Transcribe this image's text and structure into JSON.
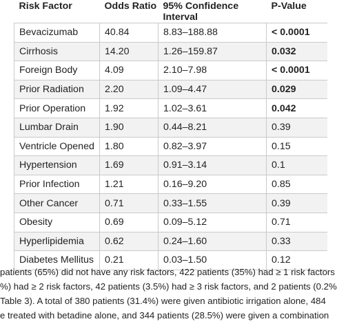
{
  "table": {
    "headers": [
      "Risk Factor",
      "Odds Ratio",
      "95% Confidence Interval",
      "P-Value"
    ],
    "rows": [
      {
        "factor": "Bevacizumab",
        "or": "40.84",
        "ci": "8.83–188.88",
        "p": "< 0.0001",
        "bold": true
      },
      {
        "factor": "Cirrhosis",
        "or": "14.20",
        "ci": "1.26–159.87",
        "p": "0.032",
        "bold": true
      },
      {
        "factor": "Foreign Body",
        "or": "4.09",
        "ci": "2.10–7.98",
        "p": "< 0.0001",
        "bold": true
      },
      {
        "factor": "Prior Radiation",
        "or": "2.20",
        "ci": "1.09–4.47",
        "p": "0.029",
        "bold": true
      },
      {
        "factor": "Prior Operation",
        "or": "1.92",
        "ci": "1.02–3.61",
        "p": "0.042",
        "bold": true
      },
      {
        "factor": "Lumbar Drain",
        "or": "1.90",
        "ci": "0.44–8.21",
        "p": "0.39",
        "bold": false
      },
      {
        "factor": "Ventricle Opened",
        "or": "1.80",
        "ci": "0.82–3.97",
        "p": "0.15",
        "bold": false
      },
      {
        "factor": "Hypertension",
        "or": "1.69",
        "ci": "0.91–3.14",
        "p": "0.1",
        "bold": false
      },
      {
        "factor": "Prior Infection",
        "or": "1.21",
        "ci": "0.16–9.20",
        "p": "0.85",
        "bold": false
      },
      {
        "factor": "Other Cancer",
        "or": "0.71",
        "ci": "0.33–1.55",
        "p": "0.39",
        "bold": false
      },
      {
        "factor": "Obesity",
        "or": "0.69",
        "ci": "0.09–5.12",
        "p": "0.71",
        "bold": false
      },
      {
        "factor": "Hyperlipidemia",
        "or": "0.62",
        "ci": "0.24–1.60",
        "p": "0.33",
        "bold": false
      },
      {
        "factor": "Diabetes Mellitus",
        "or": "0.21",
        "ci": "0.03–1.50",
        "p": "0.12",
        "bold": false
      }
    ]
  },
  "caption": {
    "lines": [
      "patients (65%) did not have any risk factors, 422 patients (35%) had ≥ 1 risk factors",
      "%) had ≥ 2 risk factors, 42 patients (3.5%) had ≥ 3 risk factors, and 2 patients (0.2%",
      "Table 3). A total of 380 patients (31.4%) were given antibiotic irrigation alone, 484",
      "e treated with betadine alone, and 344 patients (28.5%) were given a combination"
    ]
  }
}
